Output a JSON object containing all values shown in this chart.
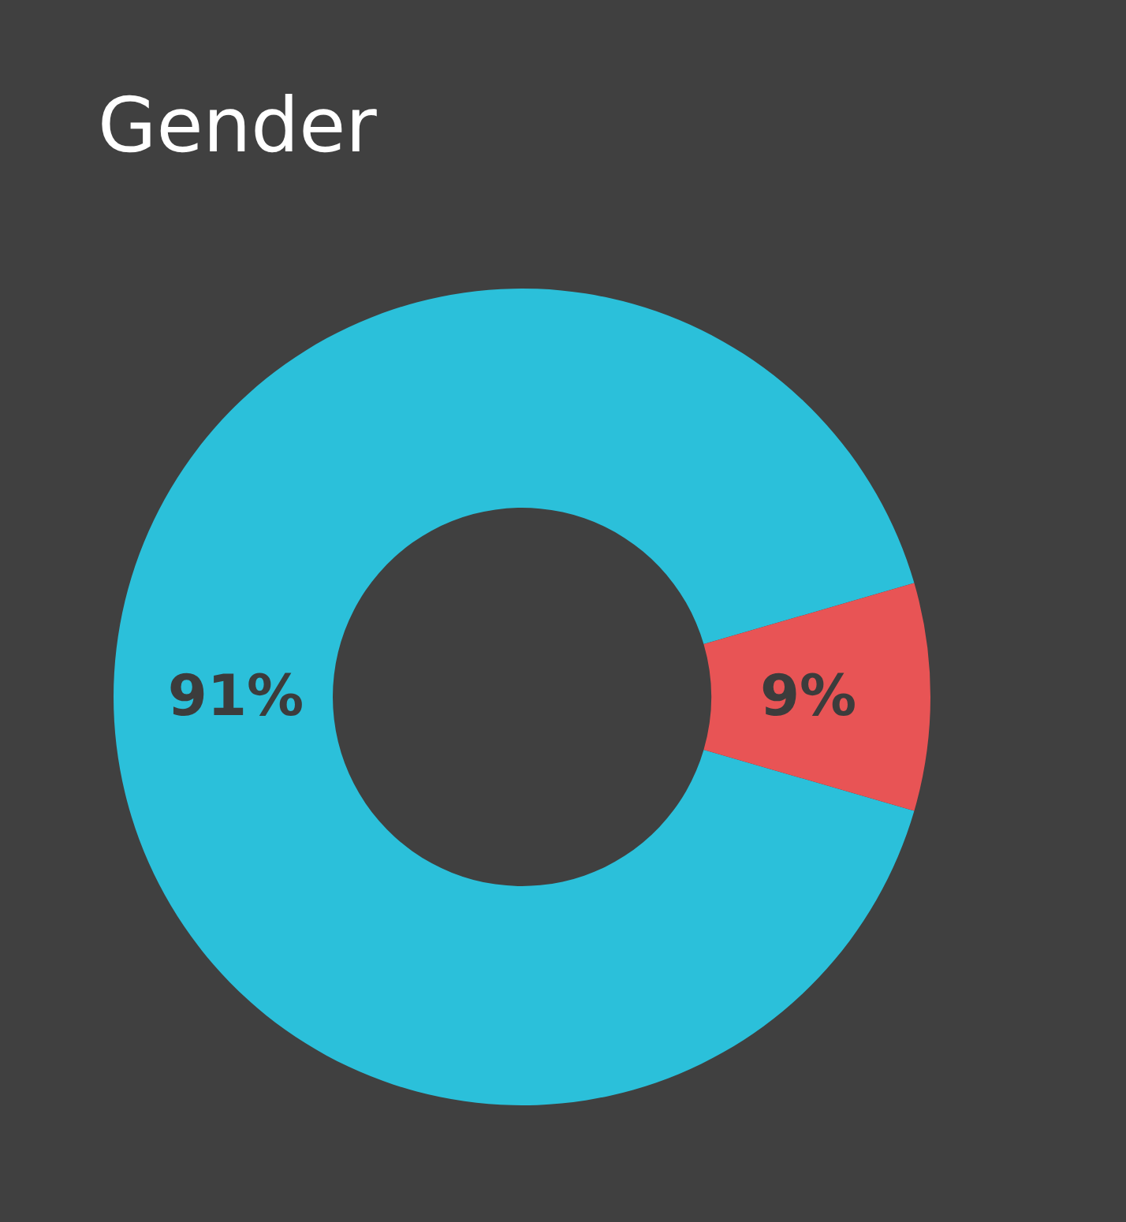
{
  "chart_data": {
    "type": "donut",
    "title": "Gender",
    "categories": [
      null,
      null
    ],
    "values": [
      91,
      9
    ],
    "colors": [
      "#2bc0da",
      "#e85455"
    ],
    "value_labels": [
      "91%",
      "9%"
    ]
  }
}
